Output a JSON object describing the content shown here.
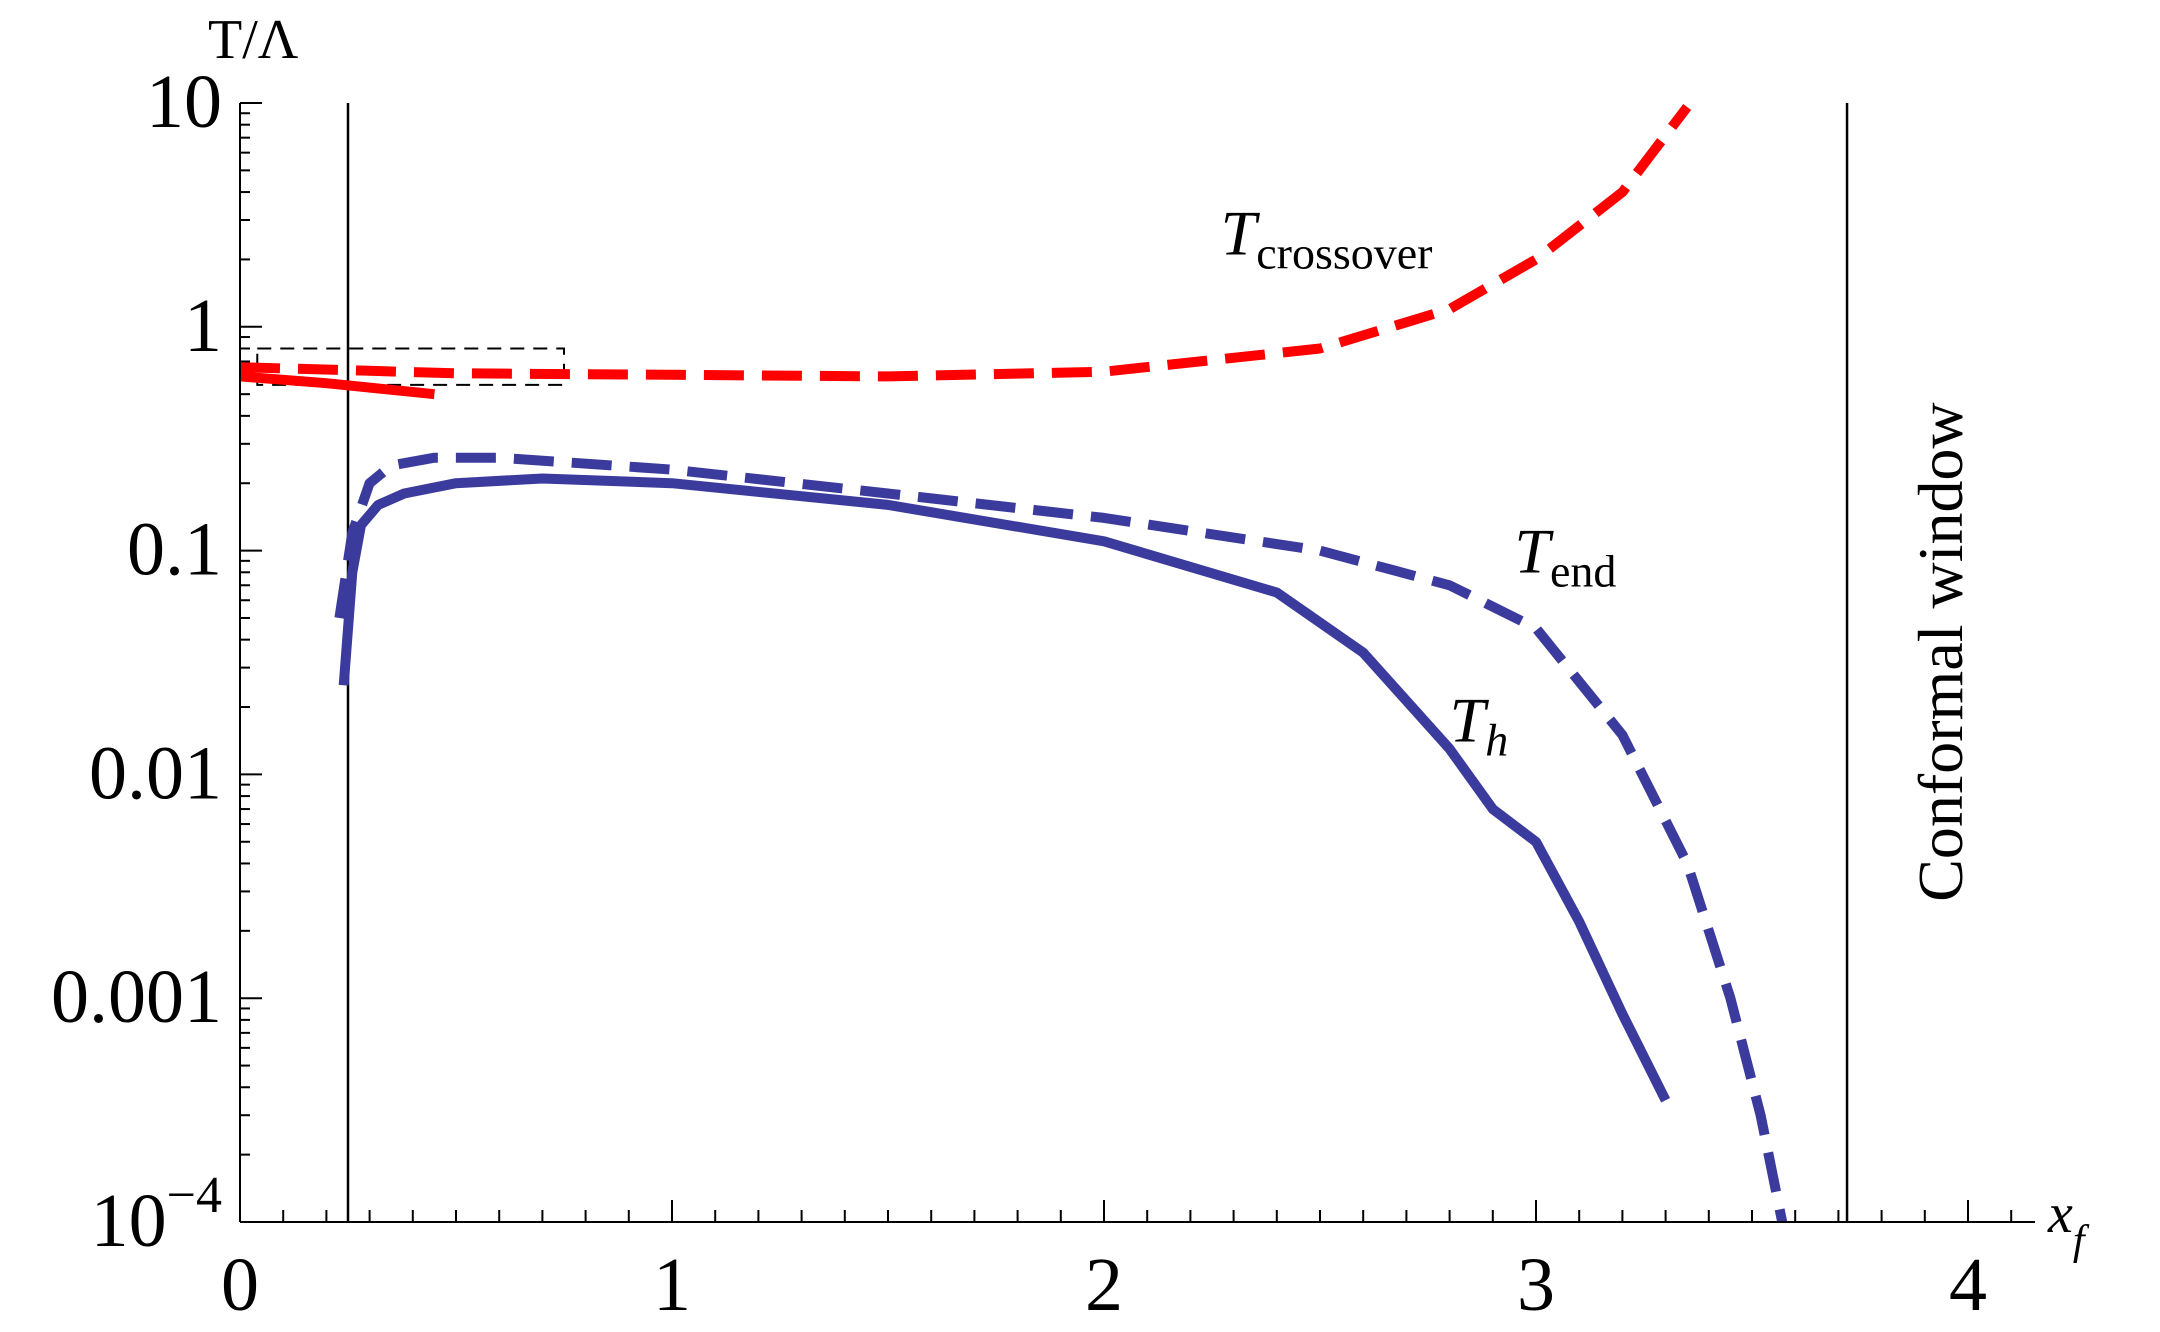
{
  "chart_data": {
    "type": "line",
    "title": "",
    "xlabel": "x",
    "xlabel_sub": "f",
    "ylabel": "T/Λ",
    "yscale": "log",
    "xlim": [
      0,
      4.2
    ],
    "ylim": [
      0.0001,
      10
    ],
    "xticks": [
      {
        "value": 0,
        "label": "0"
      },
      {
        "value": 1,
        "label": "1"
      },
      {
        "value": 2,
        "label": "2"
      },
      {
        "value": 3,
        "label": "3"
      },
      {
        "value": 4,
        "label": "4"
      }
    ],
    "yticks": [
      {
        "value": 10,
        "label": "10",
        "exp": ""
      },
      {
        "value": 1,
        "label": "1",
        "exp": ""
      },
      {
        "value": 0.1,
        "label": "0.1",
        "exp": ""
      },
      {
        "value": 0.01,
        "label": "0.01",
        "exp": ""
      },
      {
        "value": 0.001,
        "label": "0.001",
        "exp": ""
      },
      {
        "value": 0.0001,
        "label": "10",
        "exp": "−4"
      }
    ],
    "vlines": [
      0.25,
      3.72
    ],
    "inset_box": {
      "x": [
        0.04,
        0.75
      ],
      "y": [
        0.55,
        0.8
      ]
    },
    "series": [
      {
        "key": "crossover",
        "color": "#ff0000",
        "style": "dashed",
        "x": [
          0,
          0.25,
          0.5,
          1.0,
          1.5,
          2.0,
          2.5,
          2.8,
          3.0,
          3.2,
          3.35
        ],
        "y": [
          0.66,
          0.64,
          0.62,
          0.61,
          0.6,
          0.63,
          0.8,
          1.2,
          2.0,
          4.0,
          9.6
        ]
      },
      {
        "key": "crossover_short",
        "color": "#ff0000",
        "style": "solid",
        "x": [
          0,
          0.2,
          0.45
        ],
        "y": [
          0.6,
          0.56,
          0.5
        ]
      },
      {
        "key": "end",
        "color": "#3b3b9e",
        "style": "dashed",
        "x": [
          0.23,
          0.26,
          0.3,
          0.35,
          0.45,
          0.6,
          1.0,
          1.5,
          2.0,
          2.5,
          2.8,
          3.0,
          3.2,
          3.35,
          3.45,
          3.52,
          3.57
        ],
        "y": [
          0.05,
          0.12,
          0.2,
          0.24,
          0.26,
          0.26,
          0.23,
          0.18,
          0.14,
          0.1,
          0.07,
          0.045,
          0.015,
          0.004,
          0.001,
          0.0003,
          0.0001
        ]
      },
      {
        "key": "h",
        "color": "#3b3b9e",
        "style": "solid",
        "x": [
          0.24,
          0.26,
          0.28,
          0.32,
          0.38,
          0.5,
          0.7,
          1.0,
          1.5,
          2.0,
          2.4,
          2.6,
          2.8,
          2.9,
          3.0,
          3.1,
          3.2,
          3.3
        ],
        "y": [
          0.025,
          0.08,
          0.13,
          0.16,
          0.18,
          0.2,
          0.21,
          0.2,
          0.16,
          0.11,
          0.065,
          0.035,
          0.013,
          0.007,
          0.005,
          0.0022,
          0.00085,
          0.00035
        ]
      }
    ],
    "labels": [
      {
        "key": "crossover",
        "main": "T",
        "sub": "crossover",
        "x": 2.27,
        "y": 2.1
      },
      {
        "key": "end",
        "main": "T",
        "sub": "end",
        "x": 2.95,
        "y": 0.08
      },
      {
        "key": "h",
        "main": "T",
        "sub": "h",
        "x": 2.8,
        "y": 0.014
      }
    ],
    "annotation": "Conformal window"
  }
}
